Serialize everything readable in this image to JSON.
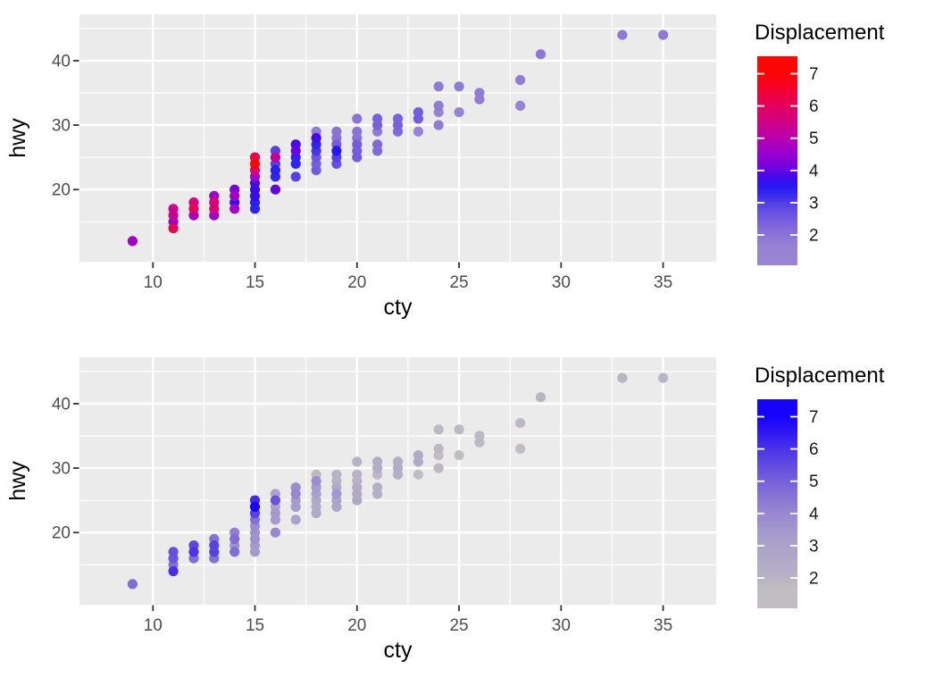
{
  "style": {
    "page_bg": "#FFFFFF",
    "panel_bg": "#EBEBEB",
    "grid_color": "#FFFFFF",
    "tick_label_color": "#4D4D4D",
    "tick_mark_color": "#333333",
    "title_color": "#000000",
    "legend_label_color": "#1A1A1A",
    "legend_tick_dash_color": "#FFFFFF"
  },
  "chart_data": {
    "type": "scatter",
    "description": "Two stacked ggplot-style scatter plots of the same data (city vs highway mpg, colored by engine displacement) with two different continuous color scales",
    "x_var": "cty",
    "y_var": "hwy",
    "color_var": "Displacement",
    "points_columns": [
      "cty",
      "hwy",
      "displ"
    ],
    "points": [
      [
        9,
        12,
        4.7
      ],
      [
        11,
        14,
        6.1
      ],
      [
        11,
        15,
        4.6
      ],
      [
        11,
        16,
        5.3
      ],
      [
        11,
        17,
        5.4
      ],
      [
        12,
        16,
        4.7
      ],
      [
        12,
        17,
        6.0
      ],
      [
        12,
        18,
        5.6
      ],
      [
        13,
        16,
        4.6
      ],
      [
        13,
        17,
        5.7
      ],
      [
        13,
        18,
        5.7
      ],
      [
        13,
        19,
        4.6
      ],
      [
        14,
        17,
        4.7
      ],
      [
        14,
        18,
        3.7
      ],
      [
        14,
        19,
        4.7
      ],
      [
        14,
        20,
        4.2
      ],
      [
        15,
        17,
        3.3
      ],
      [
        15,
        18,
        3.4
      ],
      [
        15,
        19,
        3.7
      ],
      [
        15,
        20,
        3.7
      ],
      [
        15,
        21,
        3.8
      ],
      [
        15,
        22,
        4.6
      ],
      [
        15,
        23,
        5.7
      ],
      [
        15,
        24,
        7.0
      ],
      [
        15,
        25,
        6.2
      ],
      [
        16,
        20,
        4.0
      ],
      [
        16,
        22,
        3.3
      ],
      [
        16,
        23,
        3.4
      ],
      [
        16,
        24,
        3.0
      ],
      [
        16,
        25,
        5.3
      ],
      [
        16,
        26,
        3.0
      ],
      [
        17,
        22,
        3.0
      ],
      [
        17,
        24,
        3.3
      ],
      [
        17,
        25,
        3.3
      ],
      [
        17,
        26,
        4.0
      ],
      [
        17,
        27,
        3.8
      ],
      [
        18,
        23,
        2.5
      ],
      [
        18,
        24,
        2.4
      ],
      [
        18,
        25,
        2.6
      ],
      [
        18,
        26,
        3.1
      ],
      [
        18,
        27,
        3.3
      ],
      [
        18,
        28,
        3.8
      ],
      [
        18,
        29,
        1.8
      ],
      [
        19,
        24,
        2.7
      ],
      [
        19,
        25,
        3.0
      ],
      [
        19,
        26,
        3.5
      ],
      [
        19,
        27,
        2.5
      ],
      [
        19,
        28,
        2.0
      ],
      [
        19,
        29,
        2.0
      ],
      [
        20,
        25,
        2.5
      ],
      [
        20,
        26,
        2.5
      ],
      [
        20,
        27,
        2.5
      ],
      [
        20,
        28,
        2.0
      ],
      [
        20,
        29,
        2.0
      ],
      [
        20,
        31,
        2.0
      ],
      [
        21,
        26,
        2.2
      ],
      [
        21,
        27,
        2.2
      ],
      [
        21,
        29,
        1.8
      ],
      [
        21,
        30,
        2.4
      ],
      [
        21,
        31,
        2.4
      ],
      [
        22,
        29,
        2.2
      ],
      [
        22,
        30,
        2.4
      ],
      [
        22,
        31,
        2.4
      ],
      [
        23,
        29,
        1.6
      ],
      [
        23,
        31,
        2.5
      ],
      [
        23,
        32,
        2.5
      ],
      [
        24,
        30,
        1.8
      ],
      [
        24,
        32,
        1.6
      ],
      [
        24,
        33,
        1.8
      ],
      [
        24,
        36,
        1.8
      ],
      [
        25,
        32,
        1.6
      ],
      [
        25,
        36,
        1.8
      ],
      [
        26,
        34,
        1.8
      ],
      [
        26,
        35,
        1.8
      ],
      [
        28,
        33,
        1.6
      ],
      [
        28,
        37,
        1.8
      ],
      [
        29,
        41,
        1.9
      ],
      [
        33,
        44,
        1.9
      ],
      [
        35,
        44,
        1.9
      ]
    ],
    "axes": {
      "xlabel": "cty",
      "ylabel": "hwy",
      "x_ticks": [
        10,
        15,
        20,
        25,
        30,
        35
      ],
      "y_ticks": [
        20,
        30,
        40
      ],
      "x_minor": [
        12.5,
        17.5,
        22.5,
        27.5,
        32.5
      ],
      "y_minor": [
        15,
        25,
        35,
        45
      ],
      "x_range": [
        9,
        35
      ],
      "y_range": [
        12,
        44
      ],
      "expand_frac": 0.05,
      "grid": true
    },
    "color_domain": [
      1.6,
      7.0
    ],
    "panels": [
      {
        "name": "blue-red-scale",
        "legend_title": "Displacement",
        "legend_ticks": [
          7,
          6,
          5,
          4,
          3,
          2
        ],
        "scale_stops": [
          [
            1.6,
            "#9784D4"
          ],
          [
            2.0,
            "#8974D6"
          ],
          [
            2.5,
            "#735CDE"
          ],
          [
            3.0,
            "#5440E6"
          ],
          [
            3.3,
            "#3024F0"
          ],
          [
            3.5,
            "#2418F2"
          ],
          [
            3.7,
            "#370DEE"
          ],
          [
            4.0,
            "#6405E2"
          ],
          [
            4.3,
            "#8600D8"
          ],
          [
            4.7,
            "#A300C6"
          ],
          [
            5.0,
            "#B900AD"
          ],
          [
            5.5,
            "#D00085"
          ],
          [
            6.0,
            "#E3005F"
          ],
          [
            6.5,
            "#F40030"
          ],
          [
            7.0,
            "#FC0705"
          ]
        ]
      },
      {
        "name": "grey-blue-scale",
        "legend_title": "Displacement",
        "legend_ticks": [
          7,
          6,
          5,
          4,
          3,
          2
        ],
        "scale_stops": [
          [
            1.6,
            "#C0BEC2"
          ],
          [
            2.0,
            "#B7B3C5"
          ],
          [
            2.5,
            "#B0AAC8"
          ],
          [
            3.0,
            "#ACA3CA"
          ],
          [
            3.5,
            "#A297CE"
          ],
          [
            4.0,
            "#9787CF"
          ],
          [
            4.5,
            "#8875D4"
          ],
          [
            5.0,
            "#7561D8"
          ],
          [
            5.5,
            "#624BDF"
          ],
          [
            6.0,
            "#4B33E8"
          ],
          [
            6.5,
            "#3018F2"
          ],
          [
            7.0,
            "#1603FA"
          ]
        ]
      }
    ]
  }
}
